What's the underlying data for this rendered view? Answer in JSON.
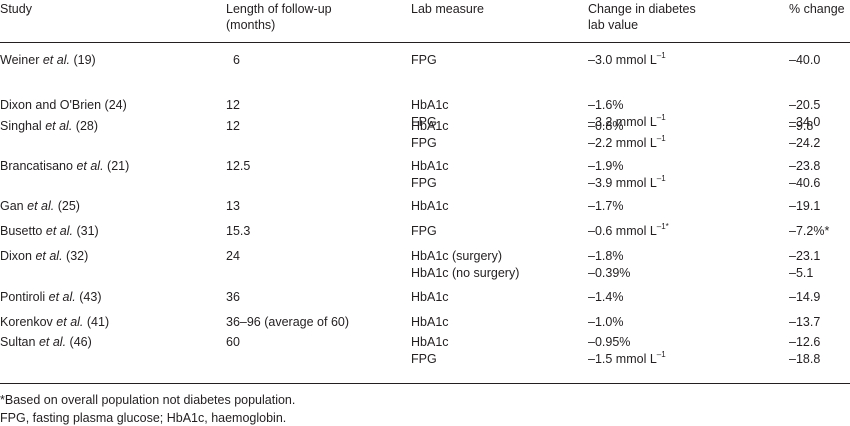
{
  "table": {
    "headers": {
      "study": "Study",
      "length_line1": "Length of follow-up",
      "length_line2": "(months)",
      "lab": "Lab measure",
      "change_line1": "Change in diabetes",
      "change_line2": "lab value",
      "pct": "% change"
    },
    "rows": [
      {
        "name": "Weiner",
        "etal": "et al.",
        "ref": "(19)",
        "months": "6",
        "labs": [
          "FPG"
        ],
        "changes": [
          {
            "v": "–3.0 mmol L",
            "sup": "–1"
          }
        ],
        "pcts": [
          "–40.0"
        ]
      },
      {
        "name": "Dixon and O'Brien",
        "etal": "",
        "ref": "(24)",
        "months": "12",
        "labs": [
          "HbA1c",
          "FPG"
        ],
        "changes": [
          {
            "v": "–1.6%",
            "sup": ""
          },
          {
            "v": "–3.2 mmol L",
            "sup": "–1"
          }
        ],
        "pcts": [
          "–20.5",
          "–34.0"
        ]
      },
      {
        "name": "Singhal",
        "etal": "et al.",
        "ref": "(28)",
        "months": "12",
        "labs": [
          "HbA1c",
          "FPG"
        ],
        "changes": [
          {
            "v": "–0.8%",
            "sup": ""
          },
          {
            "v": "–2.2 mmol L",
            "sup": "–1"
          }
        ],
        "pcts": [
          "–9.8",
          "–24.2"
        ]
      },
      {
        "name": "Brancatisano",
        "etal": "et al.",
        "ref": "(21)",
        "months": "12.5",
        "labs": [
          "HbA1c",
          "FPG"
        ],
        "changes": [
          {
            "v": "–1.9%",
            "sup": ""
          },
          {
            "v": "–3.9 mmol L",
            "sup": "–1"
          }
        ],
        "pcts": [
          "–23.8",
          "–40.6"
        ]
      },
      {
        "name": "Gan",
        "etal": "et al.",
        "ref": "(25)",
        "months": "13",
        "labs": [
          "HbA1c"
        ],
        "changes": [
          {
            "v": "–1.7%",
            "sup": ""
          }
        ],
        "pcts": [
          "–19.1"
        ]
      },
      {
        "name": "Busetto",
        "etal": "et al.",
        "ref": "(31)",
        "months": "15.3",
        "labs": [
          "FPG"
        ],
        "changes": [
          {
            "v": "–0.6 mmol L",
            "sup": "–1*"
          }
        ],
        "pcts": [
          "–7.2%*"
        ]
      },
      {
        "name": "Dixon",
        "etal": "et al.",
        "ref": "(32)",
        "months": "24",
        "labs": [
          "HbA1c (surgery)",
          "HbA1c (no surgery)"
        ],
        "changes": [
          {
            "v": "–1.8%",
            "sup": ""
          },
          {
            "v": "–0.39%",
            "sup": ""
          }
        ],
        "pcts": [
          "–23.1",
          "–5.1"
        ]
      },
      {
        "name": "Pontiroli",
        "etal": "et al.",
        "ref": "(43)",
        "months": "36",
        "labs": [
          "HbA1c"
        ],
        "changes": [
          {
            "v": "–1.4%",
            "sup": ""
          }
        ],
        "pcts": [
          "–14.9"
        ]
      },
      {
        "name": "Korenkov",
        "etal": "et al.",
        "ref": "(41)",
        "months": "36–96 (average of 60)",
        "labs": [
          "HbA1c"
        ],
        "changes": [
          {
            "v": "–1.0%",
            "sup": ""
          }
        ],
        "pcts": [
          "–13.7"
        ]
      },
      {
        "name": "Sultan",
        "etal": "et al.",
        "ref": "(46)",
        "months": "60",
        "labs": [
          "HbA1c",
          "FPG"
        ],
        "changes": [
          {
            "v": "–0.95%",
            "sup": ""
          },
          {
            "v": "–1.5 mmol L",
            "sup": "–1"
          }
        ],
        "pcts": [
          "–12.6",
          "–18.8"
        ]
      }
    ]
  },
  "footnotes": {
    "note1": "*Based on overall population not diabetes population.",
    "note2": "FPG, fasting plasma glucose; HbA1c, haemoglobin."
  }
}
